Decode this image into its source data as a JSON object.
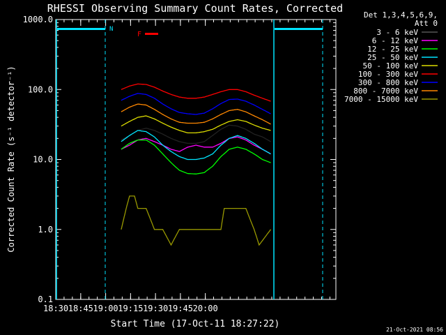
{
  "chart_data": {
    "type": "line",
    "title": "RHESSI Observing Summary Count Rates, Corrected",
    "xlabel": "Start Time (17-Oct-11 18:27:22)",
    "ylabel": "Corrected Count Rate (s⁻¹ detector⁻¹)",
    "y_scale": "log",
    "ylim": [
      0.1,
      1000.0
    ],
    "y_ticks": [
      "0.1",
      "1.0",
      "10.0",
      "100.0",
      "1000.0"
    ],
    "xlim_minutes": [
      18.37,
      21.2
    ],
    "x_ticks": [
      "18:30",
      "18:45",
      "19:00",
      "19:15",
      "19:30",
      "19:45",
      "20:00"
    ],
    "legend_header": "Det 1,3,4,5,6,9,",
    "legend_header2": "Att 0",
    "legend_position": "top-right, outside plot",
    "footer_date": "21-Oct-2021 08:56",
    "markers": {
      "night_label": "N",
      "flare_label": "F",
      "flare_color": "#ff0000",
      "night_color": "#00e5ff"
    },
    "series": [
      {
        "name": "3 - 6 keV",
        "color": "#000000",
        "x": [
          42,
          47,
          52,
          57,
          62,
          67,
          72,
          77,
          82,
          87,
          92,
          97,
          102,
          107,
          112,
          117,
          122,
          127,
          132
        ],
        "y": [
          19,
          22,
          26,
          28,
          26,
          23,
          20,
          18,
          17,
          17,
          18,
          22,
          27,
          31,
          30,
          27,
          23,
          21,
          18
        ]
      },
      {
        "name": "6 - 12 keV",
        "color": "#ff00ff",
        "x": [
          42,
          47,
          52,
          57,
          62,
          67,
          72,
          77,
          82,
          87,
          92,
          97,
          102,
          107,
          112,
          117,
          122,
          127,
          132
        ],
        "y": [
          14,
          16,
          19,
          20,
          18,
          16,
          14,
          13,
          15,
          16,
          15,
          15,
          17,
          20,
          21,
          19,
          16,
          14,
          12
        ]
      },
      {
        "name": "12 - 25 keV",
        "color": "#00ff00",
        "x": [
          42,
          47,
          52,
          57,
          62,
          67,
          72,
          77,
          82,
          87,
          92,
          97,
          102,
          107,
          112,
          117,
          122,
          127,
          132
        ],
        "y": [
          14,
          17,
          19,
          19,
          16,
          12,
          9,
          7,
          6.3,
          6.2,
          6.5,
          8,
          11,
          14,
          15,
          14,
          12,
          10,
          9
        ]
      },
      {
        "name": "25 - 50 keV",
        "color": "#00e5ff",
        "x": [
          42,
          47,
          52,
          57,
          62,
          67,
          72,
          77,
          82,
          87,
          92,
          97,
          102,
          107,
          112,
          117,
          122,
          127,
          132
        ],
        "y": [
          18,
          22,
          26,
          25,
          21,
          16,
          13,
          11,
          10,
          10,
          10.5,
          12,
          16,
          20,
          22,
          20,
          17,
          14,
          12
        ]
      },
      {
        "name": "50 - 100 keV",
        "color": "#dddd00",
        "x": [
          42,
          47,
          52,
          57,
          62,
          67,
          72,
          77,
          82,
          87,
          92,
          97,
          102,
          107,
          112,
          117,
          122,
          127,
          132
        ],
        "y": [
          30,
          35,
          40,
          42,
          38,
          33,
          29,
          26,
          24,
          24,
          25,
          27,
          31,
          35,
          37,
          35,
          31,
          28,
          26
        ]
      },
      {
        "name": "100 - 300 keV",
        "color": "#ff0000",
        "x": [
          42,
          47,
          52,
          57,
          62,
          67,
          72,
          77,
          82,
          87,
          92,
          97,
          102,
          107,
          112,
          117,
          122,
          127,
          132
        ],
        "y": [
          100,
          112,
          120,
          118,
          108,
          95,
          85,
          78,
          75,
          75,
          78,
          85,
          93,
          100,
          100,
          93,
          83,
          75,
          68
        ]
      },
      {
        "name": "300 - 800 keV",
        "color": "#0000ff",
        "x": [
          42,
          47,
          52,
          57,
          62,
          67,
          72,
          77,
          82,
          87,
          92,
          97,
          102,
          107,
          112,
          117,
          122,
          127,
          132
        ],
        "y": [
          70,
          80,
          88,
          85,
          75,
          62,
          53,
          47,
          45,
          44,
          46,
          53,
          63,
          72,
          73,
          68,
          60,
          52,
          45
        ]
      },
      {
        "name": "800 - 7000 keV",
        "color": "#ff8800",
        "x": [
          42,
          47,
          52,
          57,
          62,
          67,
          72,
          77,
          82,
          87,
          92,
          97,
          102,
          107,
          112,
          117,
          122,
          127,
          132
        ],
        "y": [
          48,
          56,
          62,
          60,
          52,
          44,
          38,
          34,
          33,
          33,
          34,
          38,
          44,
          50,
          52,
          48,
          42,
          37,
          32
        ]
      },
      {
        "name": "7000 - 15000 keV",
        "color": "#999900",
        "x": [
          42,
          45,
          47,
          50,
          52,
          57,
          62,
          67,
          72,
          77,
          82,
          87,
          92,
          97,
          102,
          104,
          107,
          112,
          117,
          122,
          125,
          132
        ],
        "y": [
          1.0,
          2.0,
          3.0,
          3.0,
          2.0,
          2.0,
          1.0,
          1.0,
          0.6,
          1.0,
          1.0,
          1.0,
          1.0,
          1.0,
          1.0,
          2.0,
          2.0,
          2.0,
          2.0,
          1.0,
          0.6,
          1.0
        ]
      }
    ]
  }
}
